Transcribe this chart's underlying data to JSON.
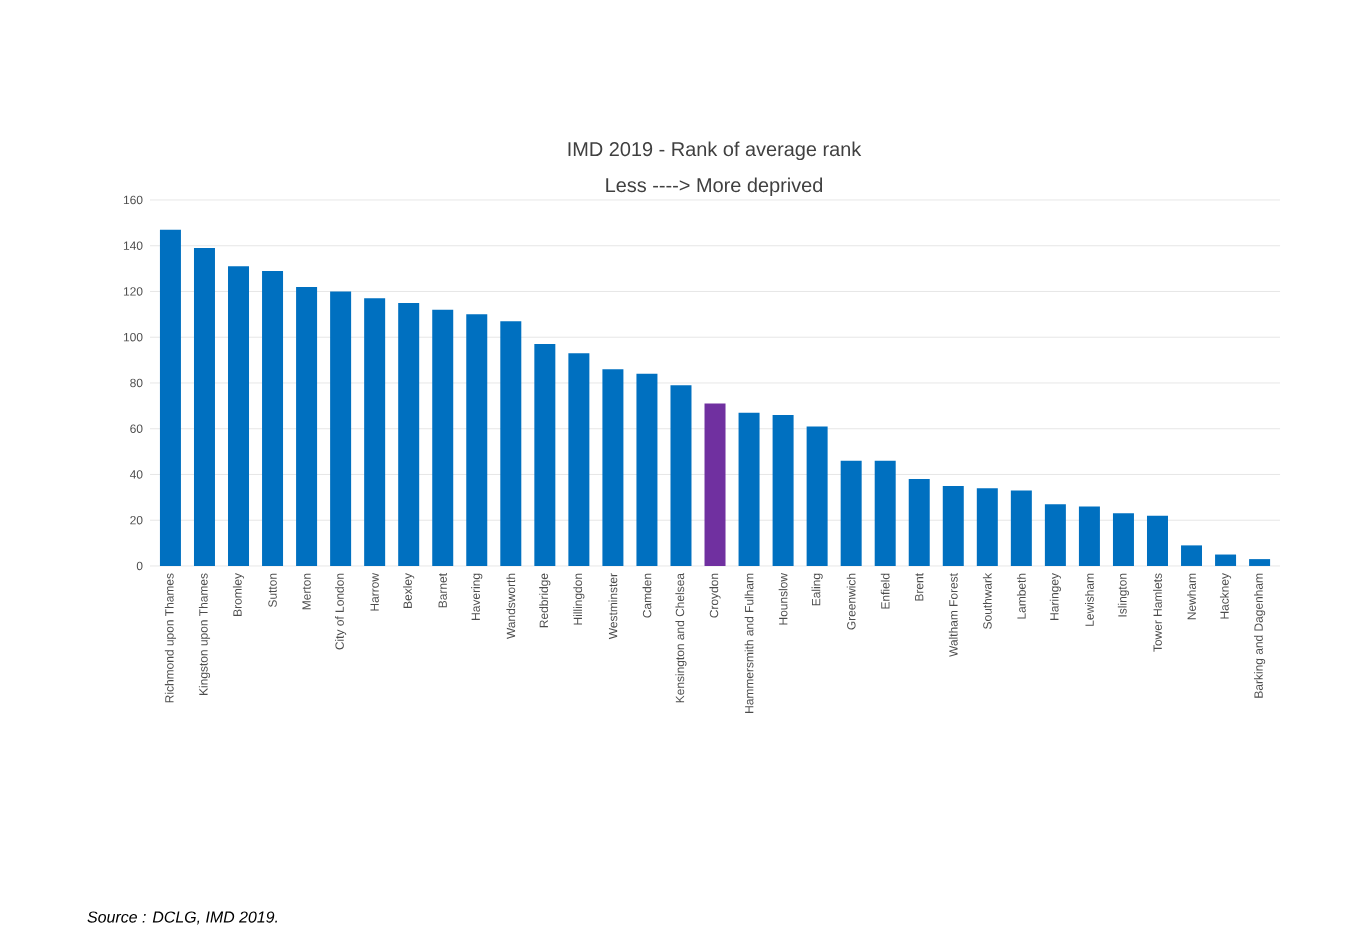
{
  "chart_data": {
    "type": "bar",
    "title": "IMD 2019 - Rank of average rank",
    "subtitle": "Less ----> More deprived",
    "categories": [
      "Richmond upon Thames",
      "Kingston upon Thames",
      "Bromley",
      "Sutton",
      "Merton",
      "City of London",
      "Harrow",
      "Bexley",
      "Barnet",
      "Havering",
      "Wandsworth",
      "Redbridge",
      "Hillingdon",
      "Westminster",
      "Camden",
      "Kensington and Chelsea",
      "Croydon",
      "Hammersmith and Fulham",
      "Hounslow",
      "Ealing",
      "Greenwich",
      "Enfield",
      "Brent",
      "Waltham Forest",
      "Southwark",
      "Lambeth",
      "Haringey",
      "Lewisham",
      "Islington",
      "Tower Hamlets",
      "Newham",
      "Hackney",
      "Barking and Dagenham"
    ],
    "values": [
      147,
      139,
      131,
      129,
      122,
      120,
      117,
      115,
      112,
      110,
      107,
      97,
      93,
      86,
      84,
      79,
      71,
      67,
      66,
      61,
      46,
      46,
      38,
      35,
      34,
      33,
      27,
      26,
      23,
      22,
      9,
      5,
      3
    ],
    "colors": [
      "#0070c0",
      "#0070c0",
      "#0070c0",
      "#0070c0",
      "#0070c0",
      "#0070c0",
      "#0070c0",
      "#0070c0",
      "#0070c0",
      "#0070c0",
      "#0070c0",
      "#0070c0",
      "#0070c0",
      "#0070c0",
      "#0070c0",
      "#0070c0",
      "#7030a0",
      "#0070c0",
      "#0070c0",
      "#0070c0",
      "#0070c0",
      "#0070c0",
      "#0070c0",
      "#0070c0",
      "#0070c0",
      "#0070c0",
      "#0070c0",
      "#0070c0",
      "#0070c0",
      "#0070c0",
      "#0070c0",
      "#0070c0",
      "#0070c0"
    ],
    "ylim": [
      0,
      160
    ],
    "yticks": [
      0,
      20,
      40,
      60,
      80,
      100,
      120,
      140,
      160
    ],
    "grid": "y",
    "annotations": [
      "Source : DCLG, IMD 2019."
    ]
  }
}
